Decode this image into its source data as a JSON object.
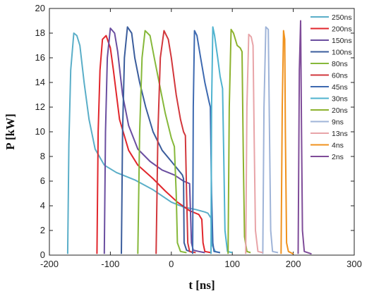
{
  "chart_data": {
    "type": "line",
    "xlabel": "t [ns]",
    "ylabel": "P [kW]",
    "xlim": [
      -200,
      300
    ],
    "ylim": [
      0,
      20
    ],
    "x_ticks": [
      -200,
      -100,
      0,
      100,
      200,
      300
    ],
    "y_ticks": [
      0,
      2,
      4,
      6,
      8,
      10,
      12,
      14,
      16,
      18,
      20
    ],
    "grid": false,
    "legend_position": "top-right",
    "series": [
      {
        "name": "250ns",
        "color": "#5aaec8",
        "points": [
          [
            -170,
            0.1
          ],
          [
            -168,
            9
          ],
          [
            -165,
            15
          ],
          [
            -160,
            18
          ],
          [
            -155,
            17.8
          ],
          [
            -150,
            17
          ],
          [
            -143,
            14
          ],
          [
            -135,
            11
          ],
          [
            -125,
            8.6
          ],
          [
            -110,
            7.3
          ],
          [
            -90,
            6.7
          ],
          [
            -60,
            6.1
          ],
          [
            -30,
            5.3
          ],
          [
            0,
            4.3
          ],
          [
            20,
            3.9
          ],
          [
            40,
            3.7
          ],
          [
            55,
            3.5
          ],
          [
            60,
            3.4
          ],
          [
            65,
            3
          ],
          [
            67,
            0.8
          ],
          [
            72,
            0.3
          ],
          [
            80,
            0.2
          ]
        ]
      },
      {
        "name": "200ns",
        "color": "#e1262c",
        "points": [
          [
            -122,
            0.1
          ],
          [
            -120,
            10
          ],
          [
            -117,
            15
          ],
          [
            -113,
            17.5
          ],
          [
            -107,
            17.8
          ],
          [
            -100,
            16.8
          ],
          [
            -95,
            15
          ],
          [
            -85,
            11
          ],
          [
            -70,
            8.5
          ],
          [
            -55,
            7.3
          ],
          [
            -30,
            6.2
          ],
          [
            -10,
            5.2
          ],
          [
            10,
            4.3
          ],
          [
            30,
            3.6
          ],
          [
            45,
            3.3
          ],
          [
            50,
            2.9
          ],
          [
            52,
            1
          ],
          [
            55,
            0.3
          ],
          [
            65,
            0.2
          ]
        ]
      },
      {
        "name": "150ns",
        "color": "#6a4ea0",
        "points": [
          [
            -110,
            0.1
          ],
          [
            -108,
            10
          ],
          [
            -105,
            16
          ],
          [
            -100,
            18.4
          ],
          [
            -93,
            18
          ],
          [
            -88,
            16.5
          ],
          [
            -80,
            13
          ],
          [
            -70,
            10.5
          ],
          [
            -55,
            8.6
          ],
          [
            -35,
            7.6
          ],
          [
            -15,
            6.9
          ],
          [
            5,
            6.5
          ],
          [
            20,
            6
          ],
          [
            30,
            5.8
          ],
          [
            33,
            1
          ],
          [
            36,
            0.4
          ],
          [
            45,
            0.3
          ],
          [
            55,
            0.2
          ]
        ]
      },
      {
        "name": "100ns",
        "color": "#3b5d9c",
        "points": [
          [
            -82,
            0.1
          ],
          [
            -80,
            10
          ],
          [
            -77,
            16
          ],
          [
            -72,
            18.5
          ],
          [
            -65,
            18
          ],
          [
            -60,
            16
          ],
          [
            -52,
            14
          ],
          [
            -42,
            12
          ],
          [
            -30,
            10
          ],
          [
            -15,
            8.5
          ],
          [
            0,
            7.6
          ],
          [
            10,
            7
          ],
          [
            18,
            6.5
          ],
          [
            20,
            6.2
          ],
          [
            21,
            1
          ],
          [
            25,
            0.4
          ],
          [
            35,
            0.2
          ]
        ]
      },
      {
        "name": "80ns",
        "color": "#86b83a",
        "points": [
          [
            -55,
            0.1
          ],
          [
            -52,
            10
          ],
          [
            -48,
            16
          ],
          [
            -43,
            18.2
          ],
          [
            -35,
            17.8
          ],
          [
            -28,
            16
          ],
          [
            -20,
            14
          ],
          [
            -10,
            11.5
          ],
          [
            0,
            9.5
          ],
          [
            5,
            8.8
          ],
          [
            8,
            5
          ],
          [
            10,
            1
          ],
          [
            15,
            0.3
          ],
          [
            25,
            0.2
          ]
        ]
      },
      {
        "name": "60ns",
        "color": "#d2373c",
        "points": [
          [
            -25,
            0.1
          ],
          [
            -22,
            10
          ],
          [
            -18,
            16
          ],
          [
            -12,
            18.2
          ],
          [
            -5,
            17.5
          ],
          [
            0,
            16
          ],
          [
            8,
            13
          ],
          [
            15,
            11
          ],
          [
            20,
            10
          ],
          [
            23,
            9.7
          ],
          [
            25,
            5
          ],
          [
            27,
            1
          ],
          [
            30,
            0.3
          ],
          [
            40,
            0.2
          ]
        ]
      },
      {
        "name": "45ns",
        "color": "#3d69b0",
        "points": [
          [
            35,
            0.1
          ],
          [
            36,
            12
          ],
          [
            38,
            18.2
          ],
          [
            42,
            17.8
          ],
          [
            48,
            16
          ],
          [
            55,
            14
          ],
          [
            62,
            12.4
          ],
          [
            64,
            12
          ],
          [
            66,
            5
          ],
          [
            68,
            1
          ],
          [
            70,
            0.3
          ],
          [
            80,
            0.2
          ]
        ]
      },
      {
        "name": "30ns",
        "color": "#4fb3cf",
        "points": [
          [
            65,
            0.1
          ],
          [
            66,
            12
          ],
          [
            68,
            18.5
          ],
          [
            71,
            17.8
          ],
          [
            76,
            16
          ],
          [
            80,
            14.5
          ],
          [
            84,
            13.5
          ],
          [
            86,
            8
          ],
          [
            88,
            2
          ],
          [
            92,
            0.3
          ],
          [
            100,
            0.2
          ]
        ]
      },
      {
        "name": "20ns",
        "color": "#8db22e",
        "points": [
          [
            93,
            0.1
          ],
          [
            95,
            12
          ],
          [
            98,
            18.3
          ],
          [
            102,
            18
          ],
          [
            108,
            17
          ],
          [
            113,
            16.8
          ],
          [
            116,
            16.5
          ],
          [
            118,
            8
          ],
          [
            120,
            1.5
          ],
          [
            124,
            0.3
          ],
          [
            130,
            0.2
          ]
        ]
      },
      {
        "name": "9ns",
        "color": "#9fb4d8",
        "points": [
          [
            150,
            0.1
          ],
          [
            152,
            12
          ],
          [
            155,
            18.5
          ],
          [
            159,
            18.3
          ],
          [
            161,
            10
          ],
          [
            163,
            2
          ],
          [
            166,
            0.3
          ],
          [
            175,
            0.2
          ]
        ]
      },
      {
        "name": "13ns",
        "color": "#e8a4a8",
        "points": [
          [
            122,
            0.1
          ],
          [
            124,
            12
          ],
          [
            127,
            17.9
          ],
          [
            131,
            17.7
          ],
          [
            134,
            17
          ],
          [
            136,
            9
          ],
          [
            138,
            2
          ],
          [
            142,
            0.3
          ],
          [
            150,
            0.2
          ]
        ]
      },
      {
        "name": "4ns",
        "color": "#f0921e",
        "points": [
          [
            180,
            0.1
          ],
          [
            182,
            12
          ],
          [
            184,
            18.2
          ],
          [
            186,
            17.5
          ],
          [
            187,
            10
          ],
          [
            189,
            1
          ],
          [
            192,
            0.3
          ],
          [
            200,
            0.1
          ]
        ]
      },
      {
        "name": "2ns",
        "color": "#7f4c99",
        "points": [
          [
            208,
            0.1
          ],
          [
            210,
            15
          ],
          [
            212,
            19
          ],
          [
            213.5,
            10
          ],
          [
            215,
            2
          ],
          [
            218,
            0.3
          ],
          [
            230,
            0.1
          ]
        ]
      }
    ]
  }
}
